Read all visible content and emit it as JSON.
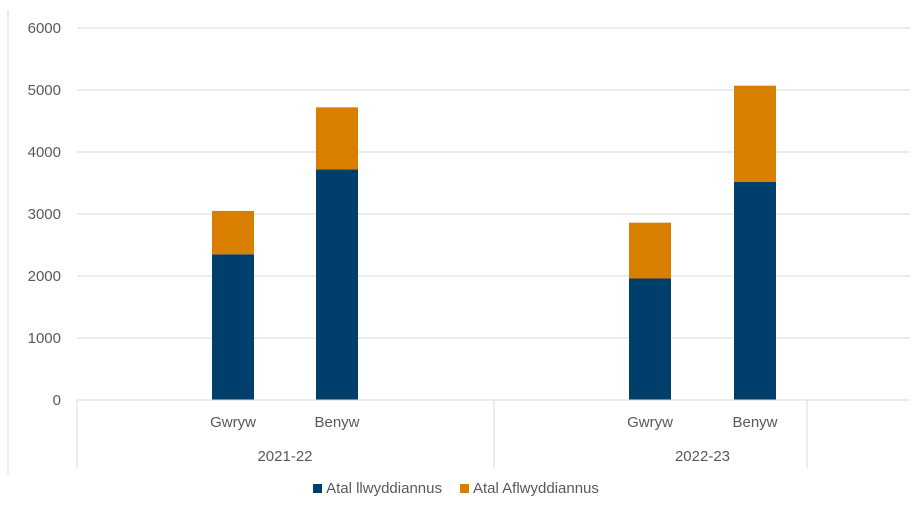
{
  "chart_data": {
    "type": "bar",
    "stacked": true,
    "groups": [
      {
        "label": "2021-22",
        "categories": [
          "Gwryw",
          "Benyw"
        ]
      },
      {
        "label": "2022-23",
        "categories": [
          "Gwryw",
          "Benyw"
        ]
      }
    ],
    "series": [
      {
        "name": "Atal llwyddiannus",
        "color": "#003f6b",
        "values": [
          2350,
          3720,
          1960,
          3520
        ]
      },
      {
        "name": "Atal Aflwyddiannus",
        "color": "#d97f00",
        "values": [
          700,
          1000,
          900,
          1550
        ]
      }
    ],
    "ylim": [
      0,
      6000
    ],
    "yticks": [
      "0",
      "1000",
      "2000",
      "3000",
      "4000",
      "5000",
      "6000"
    ],
    "grid": true,
    "legend_position": "bottom"
  }
}
